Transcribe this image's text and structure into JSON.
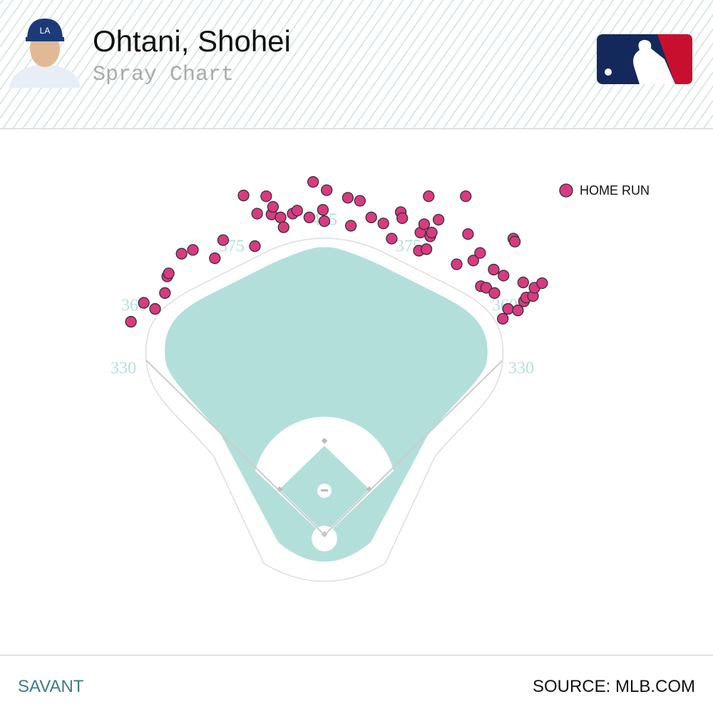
{
  "header": {
    "title": "Ohtani, Shohei",
    "subtitle": "Spray Chart"
  },
  "chart_data": {
    "type": "scatter",
    "series": [
      {
        "name": "HOME RUN",
        "color": "#d93a82",
        "x": [
          -256,
          -239,
          -224,
          -211,
          -208,
          -206,
          -189,
          -174,
          -145,
          -134,
          -107,
          -92,
          -89,
          -77,
          -70,
          -68,
          -58,
          -54,
          -42,
          -36,
          -20,
          -15,
          -2,
          0,
          3,
          31,
          35,
          47,
          62,
          78,
          89,
          101,
          103,
          127,
          125,
          132,
          135,
          138,
          140,
          142,
          151,
          175,
          187,
          190,
          197,
          206,
          207,
          214,
          224,
          225,
          237,
          236,
          243,
          250,
          252,
          256,
          263,
          264,
          267,
          276,
          278,
          288
        ],
        "values": [
          282,
          307,
          299,
          320,
          342,
          346,
          372,
          377,
          366,
          390,
          449,
          382,
          425,
          448,
          424,
          434,
          420,
          407,
          425,
          429,
          420,
          467,
          430,
          415,
          456,
          446,
          409,
          442,
          420,
          412,
          392,
          427,
          419,
          400,
          376,
          411,
          378,
          448,
          395,
          400,
          417,
          358,
          448,
          398,
          363,
          373,
          329,
          327,
          351,
          320,
          343,
          286,
          299,
          392,
          388,
          297,
          334,
          309,
          314,
          316,
          327,
          333
        ]
      }
    ],
    "xlim": [
      -300,
      300
    ],
    "ylim": [
      0,
      500
    ],
    "distance_labels": [
      330,
      360,
      375,
      405,
      375,
      360,
      330
    ]
  },
  "footer": {
    "left": "SAVANT",
    "right": "SOURCE: MLB.COM"
  }
}
